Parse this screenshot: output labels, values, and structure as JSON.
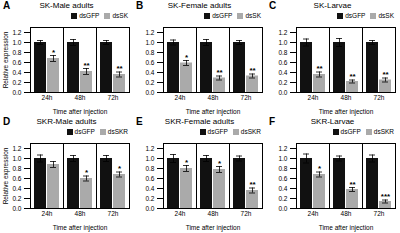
{
  "chart_data": [
    {
      "type": "bar",
      "panel_label": "A",
      "title": "SK-Male adults",
      "xlabel": "Time after injection",
      "ylabel": "Relative expression",
      "categories": [
        "24h",
        "48h",
        "72h"
      ],
      "series": [
        {
          "name": "dsGFP",
          "color": "#111111",
          "values": [
            1.0,
            1.0,
            1.0
          ],
          "errors": [
            0.04,
            0.06,
            0.04
          ]
        },
        {
          "name": "dsSK",
          "color": "#aaaaaa",
          "values": [
            0.68,
            0.42,
            0.36
          ],
          "errors": [
            0.06,
            0.06,
            0.05
          ],
          "significance": [
            "*",
            "**",
            "**"
          ]
        }
      ],
      "ylim": [
        0,
        1.3
      ],
      "yticks": [
        {
          "value": 0.0,
          "label": "0.0"
        },
        0.2,
        0.4,
        0.6,
        0.8,
        {
          "value": 1.0,
          "label": "1.0"
        },
        1.2
      ],
      "legend": "upper right",
      "grid": false
    },
    {
      "type": "bar",
      "panel_label": "B",
      "title": "SK-Female adults",
      "xlabel": "Time after injection",
      "categories": [
        "24h",
        "48h",
        "72h"
      ],
      "series": [
        {
          "name": "dsGFP",
          "color": "#111111",
          "values": [
            1.0,
            1.0,
            1.0
          ],
          "errors": [
            0.05,
            0.06,
            0.04
          ]
        },
        {
          "name": "dsSK",
          "color": "#aaaaaa",
          "values": [
            0.59,
            0.29,
            0.33
          ],
          "errors": [
            0.05,
            0.04,
            0.04
          ],
          "significance": [
            "*",
            "**",
            "**"
          ]
        }
      ],
      "ylim": [
        0,
        1.3
      ],
      "yticks": [
        {
          "value": 0.0,
          "label": "0.0"
        },
        0.2,
        0.4,
        0.6,
        0.8,
        {
          "value": 1.0,
          "label": "1.0"
        },
        1.2
      ],
      "legend": "upper right",
      "grid": false
    },
    {
      "type": "bar",
      "panel_label": "C",
      "title": "SK-Larvae",
      "xlabel": "Time after injection",
      "categories": [
        "24h",
        "48h",
        "72h"
      ],
      "series": [
        {
          "name": "dsGFP",
          "color": "#111111",
          "values": [
            1.0,
            1.0,
            1.0
          ],
          "errors": [
            0.07,
            0.08,
            0.04
          ]
        },
        {
          "name": "dsSK",
          "color": "#aaaaaa",
          "values": [
            0.36,
            0.22,
            0.25
          ],
          "errors": [
            0.05,
            0.03,
            0.04
          ],
          "significance": [
            "**",
            "**",
            "**"
          ]
        }
      ],
      "ylim": [
        0,
        1.3
      ],
      "yticks": [
        {
          "value": 0.0,
          "label": "0.0"
        },
        0.2,
        0.4,
        0.6,
        0.8,
        {
          "value": 1.0,
          "label": "1.0"
        },
        1.2
      ],
      "legend": "upper right",
      "grid": false
    },
    {
      "type": "bar",
      "panel_label": "D",
      "title": "SKR-Male adults",
      "xlabel": "Time after injection",
      "ylabel": "Relative expression",
      "categories": [
        "24h",
        "48h",
        "72h"
      ],
      "series": [
        {
          "name": "dsGFP",
          "color": "#111111",
          "values": [
            1.0,
            1.0,
            1.0
          ],
          "errors": [
            0.07,
            0.06,
            0.06
          ]
        },
        {
          "name": "dsSKR",
          "color": "#aaaaaa",
          "values": [
            0.88,
            0.6,
            0.68
          ],
          "errors": [
            0.06,
            0.05,
            0.05
          ],
          "significance": [
            null,
            "*",
            "*"
          ]
        }
      ],
      "ylim": [
        0,
        1.3
      ],
      "yticks": [
        {
          "value": 0.0,
          "label": "0.0"
        },
        0.2,
        0.4,
        0.6,
        0.8,
        {
          "value": 1.0,
          "label": "1.0"
        },
        1.2
      ],
      "legend": "upper right",
      "grid": false
    },
    {
      "type": "bar",
      "panel_label": "E",
      "title": "SKR-Female adults",
      "xlabel": "Time after injection",
      "categories": [
        "24h",
        "48h",
        "72h"
      ],
      "series": [
        {
          "name": "dsGFP",
          "color": "#111111",
          "values": [
            1.0,
            1.0,
            1.0
          ],
          "errors": [
            0.08,
            0.06,
            0.05
          ]
        },
        {
          "name": "dsSKR",
          "color": "#aaaaaa",
          "values": [
            0.8,
            0.78,
            0.36
          ],
          "errors": [
            0.06,
            0.06,
            0.05
          ],
          "significance": [
            "*",
            "*",
            "**"
          ]
        }
      ],
      "ylim": [
        0,
        1.3
      ],
      "yticks": [
        {
          "value": 0.0,
          "label": "0.0"
        },
        0.2,
        0.4,
        0.6,
        0.8,
        {
          "value": 1.0,
          "label": "1.0"
        },
        1.2
      ],
      "legend": "upper right",
      "grid": false
    },
    {
      "type": "bar",
      "panel_label": "F",
      "title": "SKR-Larvae",
      "xlabel": "Time after injection",
      "categories": [
        "24h",
        "48h",
        "72h"
      ],
      "series": [
        {
          "name": "dsGFP",
          "color": "#111111",
          "values": [
            1.0,
            1.0,
            1.0
          ],
          "errors": [
            0.09,
            0.05,
            0.07
          ]
        },
        {
          "name": "dsSKR",
          "color": "#aaaaaa",
          "values": [
            0.68,
            0.38,
            0.14
          ],
          "errors": [
            0.05,
            0.04,
            0.03
          ],
          "significance": [
            "*",
            "**",
            "***"
          ]
        }
      ],
      "ylim": [
        0,
        1.3
      ],
      "yticks": [
        {
          "value": 0.0,
          "label": "0.0"
        },
        0.2,
        0.4,
        0.6,
        0.8,
        {
          "value": 1.0,
          "label": "1.0"
        },
        1.2
      ],
      "legend": "upper right",
      "grid": false
    }
  ]
}
